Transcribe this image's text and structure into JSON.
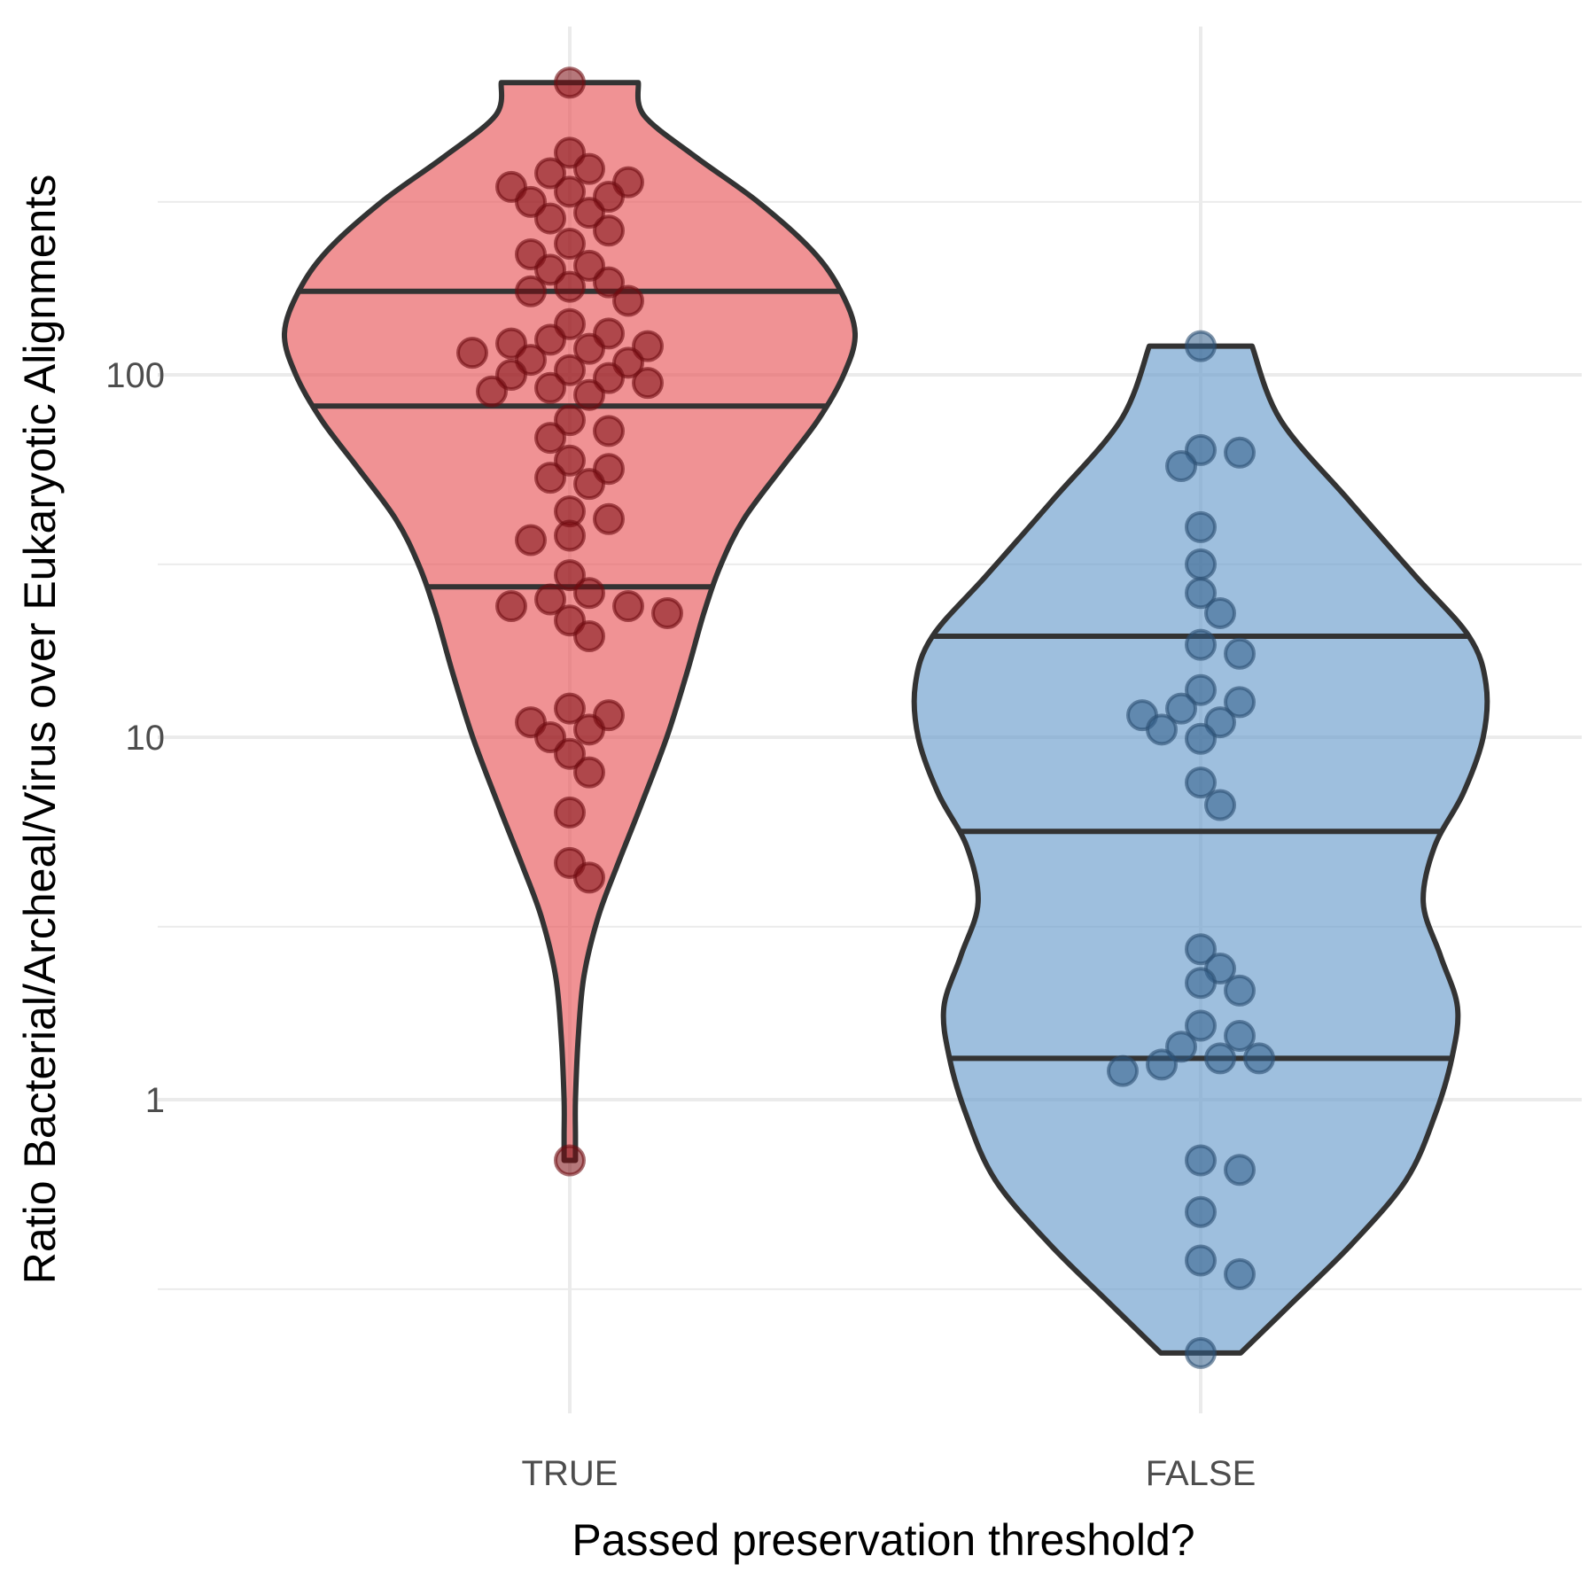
{
  "chart_data": {
    "type": "violin",
    "xlabel": "Passed preservation threshold?",
    "ylabel": "Ratio Bacterial/Archeal/Virus over Eukaryotic Alignments",
    "y_scale": "log10",
    "ylim": [
      0.2,
      650
    ],
    "y_ticks": [
      1,
      10,
      100
    ],
    "y_tick_labels": [
      "1",
      "10",
      "100"
    ],
    "categories": [
      "TRUE",
      "FALSE"
    ],
    "grid": true,
    "colors": {
      "TRUE": "#e8585a",
      "FALSE": "#6a9ccc",
      "outline": "#333333",
      "grid": "#ebebeb"
    },
    "series": [
      {
        "category": "TRUE",
        "quantiles": [
          26,
          82,
          170
        ],
        "violin_shape": [
          [
            0.68,
            0.02
          ],
          [
            0.8,
            0.02
          ],
          [
            1.0,
            0.02
          ],
          [
            1.5,
            0.03
          ],
          [
            2.2,
            0.05
          ],
          [
            3.2,
            0.1
          ],
          [
            4.5,
            0.17
          ],
          [
            6.5,
            0.25
          ],
          [
            10,
            0.34
          ],
          [
            15,
            0.41
          ],
          [
            22,
            0.47
          ],
          [
            30,
            0.53
          ],
          [
            40,
            0.61
          ],
          [
            55,
            0.74
          ],
          [
            75,
            0.87
          ],
          [
            100,
            0.96
          ],
          [
            130,
            1.0
          ],
          [
            170,
            0.95
          ],
          [
            220,
            0.85
          ],
          [
            300,
            0.66
          ],
          [
            400,
            0.44
          ],
          [
            520,
            0.26
          ],
          [
            640,
            0.24
          ]
        ],
        "points": [
          640,
          410,
          370,
          360,
          340,
          330,
          320,
          310,
          300,
          280,
          270,
          250,
          230,
          215,
          200,
          195,
          180,
          175,
          170,
          160,
          138,
          130,
          125,
          122,
          120,
          118,
          115,
          110,
          108,
          103,
          100,
          98,
          95,
          92,
          90,
          88,
          75,
          70,
          67,
          58,
          55,
          52,
          50,
          42,
          40,
          36,
          35,
          28,
          25,
          24,
          23,
          23,
          22,
          21,
          19,
          12,
          11.5,
          11,
          10.5,
          10,
          9,
          8,
          6.2,
          4.5,
          4.1,
          0.68
        ]
      },
      {
        "category": "FALSE",
        "quantiles": [
          1.3,
          5.5,
          19
        ],
        "violin_shape": [
          [
            0.2,
            0.14
          ],
          [
            0.27,
            0.31
          ],
          [
            0.4,
            0.53
          ],
          [
            0.6,
            0.72
          ],
          [
            0.9,
            0.82
          ],
          [
            1.3,
            0.88
          ],
          [
            1.8,
            0.9
          ],
          [
            2.5,
            0.84
          ],
          [
            3.5,
            0.78
          ],
          [
            5,
            0.82
          ],
          [
            7,
            0.92
          ],
          [
            10,
            0.99
          ],
          [
            14,
            1.0
          ],
          [
            19,
            0.94
          ],
          [
            28,
            0.75
          ],
          [
            45,
            0.52
          ],
          [
            75,
            0.28
          ],
          [
            120,
            0.18
          ]
        ],
        "points": [
          120,
          62,
          61,
          56,
          38,
          30,
          25,
          22,
          18,
          17,
          13.5,
          12.5,
          12,
          11.5,
          11,
          10.5,
          9.9,
          7.5,
          6.5,
          2.6,
          2.3,
          2.1,
          2.0,
          1.6,
          1.5,
          1.4,
          1.3,
          1.3,
          1.25,
          1.2,
          0.68,
          0.64,
          0.49,
          0.36,
          0.33,
          0.2
        ]
      }
    ]
  }
}
